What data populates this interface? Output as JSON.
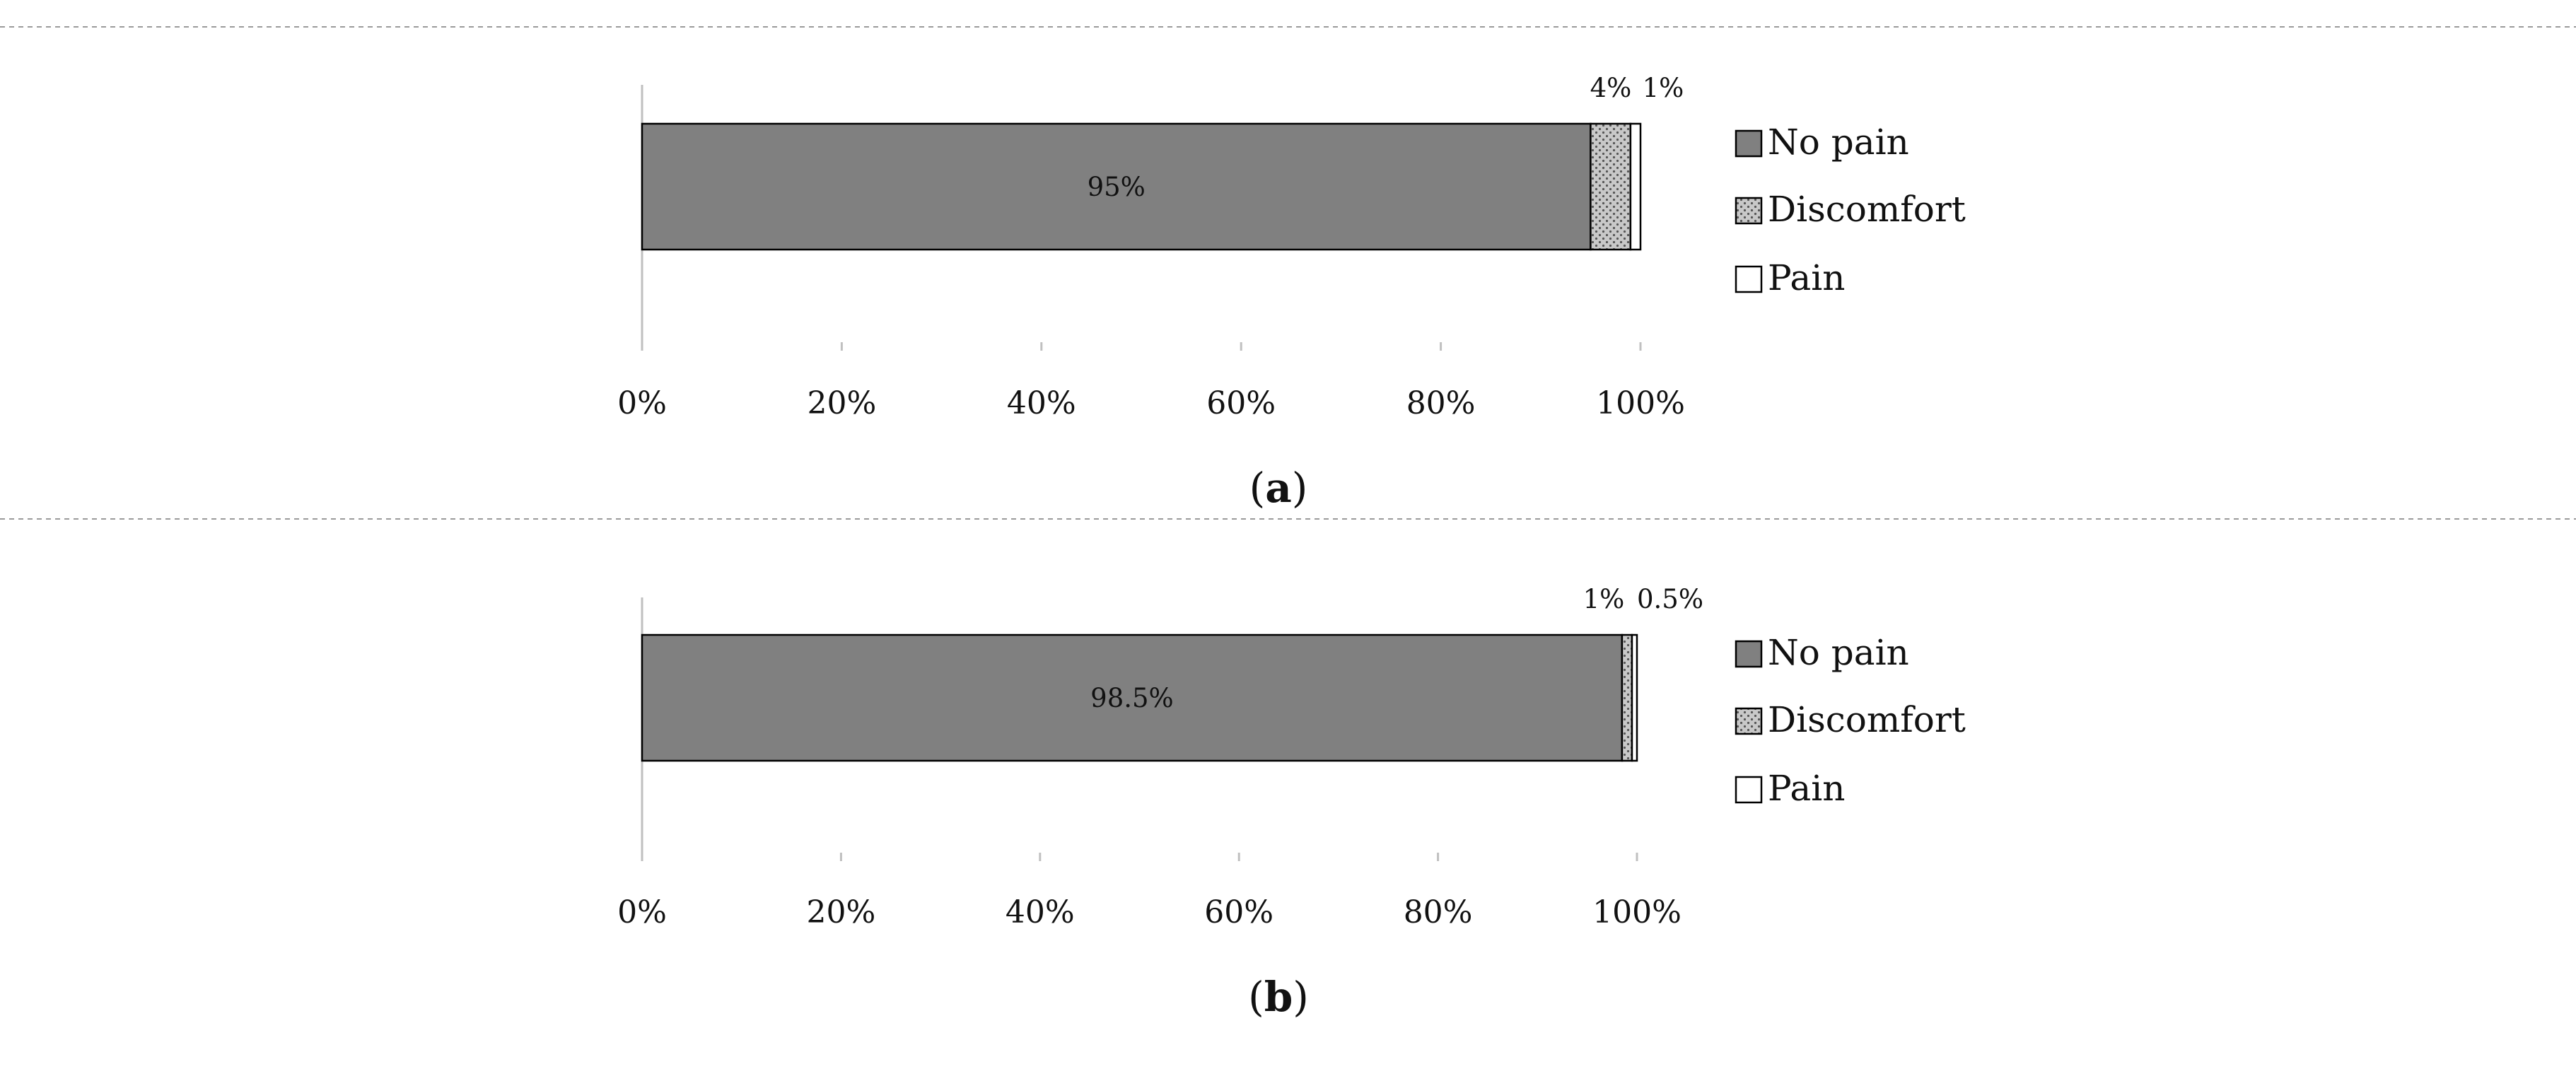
{
  "chart_data": [
    {
      "type": "bar",
      "orientation": "horizontal",
      "stacked": true,
      "caption_letter": "a",
      "xlim": [
        0,
        100
      ],
      "x_ticks": [
        "0%",
        "20%",
        "40%",
        "60%",
        "80%",
        "100%"
      ],
      "grid": false,
      "legend_position": "right",
      "series": [
        {
          "name": "No pain",
          "value": 95,
          "label": "95%",
          "color": "#808080",
          "pattern": "solid"
        },
        {
          "name": "Discomfort",
          "value": 4,
          "label": "4%",
          "color": "#c8c8c8",
          "pattern": "dotted"
        },
        {
          "name": "Pain",
          "value": 1,
          "label": "1%",
          "color": "#ffffff",
          "pattern": "solid"
        }
      ]
    },
    {
      "type": "bar",
      "orientation": "horizontal",
      "stacked": true,
      "caption_letter": "b",
      "xlim": [
        0,
        100
      ],
      "x_ticks": [
        "0%",
        "20%",
        "40%",
        "60%",
        "80%",
        "100%"
      ],
      "grid": false,
      "legend_position": "right",
      "series": [
        {
          "name": "No pain",
          "value": 98.5,
          "label": "98.5%",
          "color": "#808080",
          "pattern": "solid"
        },
        {
          "name": "Discomfort",
          "value": 1,
          "label": "1%",
          "color": "#c8c8c8",
          "pattern": "dotted"
        },
        {
          "name": "Pain",
          "value": 0.5,
          "label": "0.5%",
          "color": "#ffffff",
          "pattern": "solid"
        }
      ]
    }
  ]
}
